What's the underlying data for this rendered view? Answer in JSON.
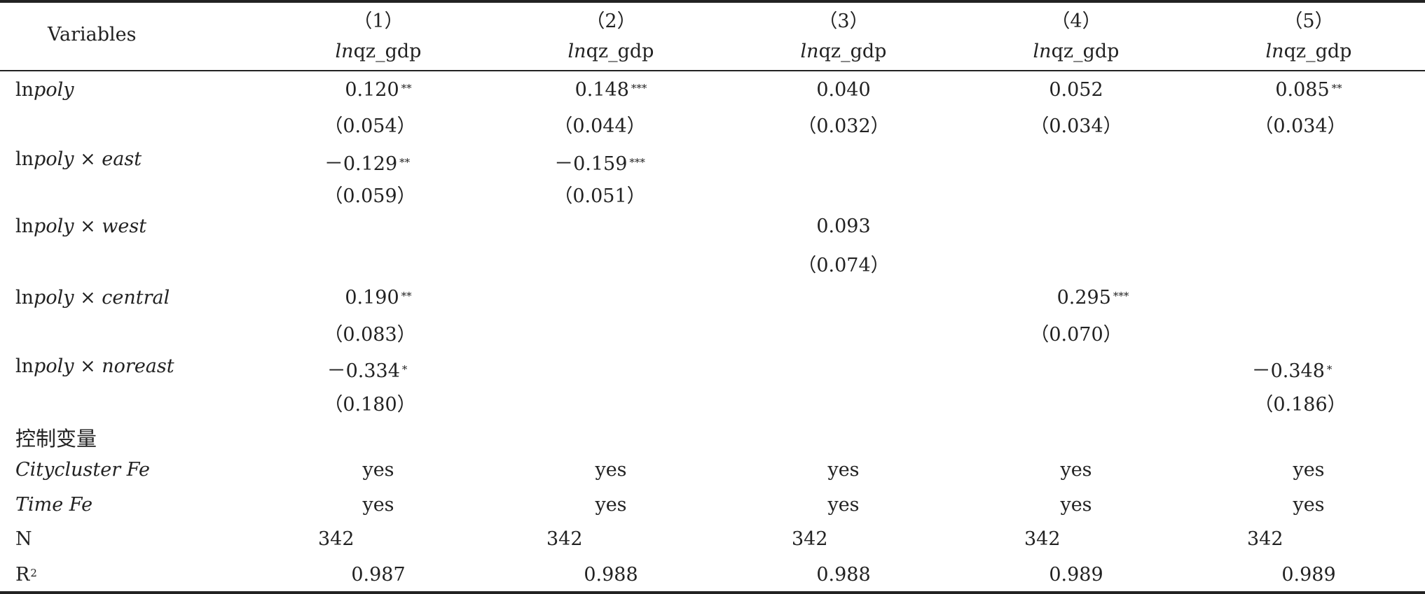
{
  "header": {
    "variables_label": "Variables",
    "columns": [
      {
        "num": "（1）",
        "dep_prefix": "ln",
        "dep_main": "qz_gdp"
      },
      {
        "num": "（2）",
        "dep_prefix": "ln",
        "dep_main": "qz_gdp"
      },
      {
        "num": "（3）",
        "dep_prefix": "ln",
        "dep_main": "qz_gdp"
      },
      {
        "num": "（4）",
        "dep_prefix": "ln",
        "dep_main": "qz_gdp"
      },
      {
        "num": "（5）",
        "dep_prefix": "ln",
        "dep_main": "qz_gdp"
      }
    ]
  },
  "rows": {
    "lnpoly": {
      "label_ln": "ln",
      "label_var": "poly",
      "coef": [
        {
          "v": "0.120",
          "s": "**"
        },
        {
          "v": "0.148",
          "s": "***"
        },
        {
          "v": "0.040",
          "s": ""
        },
        {
          "v": "0.052",
          "s": ""
        },
        {
          "v": "0.085",
          "s": "**"
        }
      ],
      "se": [
        "（0.054）",
        "（0.044）",
        "（0.032）",
        "（0.034）",
        "（0.034）"
      ]
    },
    "east": {
      "label_ln": "ln",
      "label_var": "poly",
      "label_x": "×",
      "label_int": "east",
      "c1": {
        "v": "－0.129",
        "s": "**"
      },
      "c2": {
        "v": "－0.159",
        "s": "***"
      },
      "se1": "（0.059）",
      "se2": "（0.051）"
    },
    "west": {
      "label_ln": "ln",
      "label_var": "poly",
      "label_x": "×",
      "label_int": "west",
      "c3": {
        "v": "0.093",
        "s": ""
      },
      "se3": "（0.074）"
    },
    "central": {
      "label_ln": "ln",
      "label_var": "poly",
      "label_x": "×",
      "label_int": "central",
      "c1": {
        "v": "0.190",
        "s": "**"
      },
      "c4": {
        "v": "0.295",
        "s": "***"
      },
      "se1": "（0.083）",
      "se4": "（0.070）"
    },
    "noreast": {
      "label_ln": "ln",
      "label_var": "poly",
      "label_x": "×",
      "label_int": "noreast",
      "c1": {
        "v": "－0.334",
        "s": "*"
      },
      "c5": {
        "v": "－0.348",
        "s": "*"
      },
      "se1": "（0.180）",
      "se5": "（0.186）"
    },
    "controls": {
      "label": "控制变量"
    },
    "citycluster": {
      "label": "Citycluster Fe",
      "values": [
        "yes",
        "yes",
        "yes",
        "yes",
        "yes"
      ]
    },
    "time": {
      "label": "Time Fe",
      "values": [
        "yes",
        "yes",
        "yes",
        "yes",
        "yes"
      ]
    },
    "n": {
      "label": "N",
      "values": [
        "342",
        "342",
        "342",
        "342",
        "342"
      ]
    },
    "r2": {
      "label": "R",
      "label_sup": "2",
      "values": [
        "0.987",
        "0.988",
        "0.988",
        "0.989",
        "0.989"
      ]
    }
  }
}
